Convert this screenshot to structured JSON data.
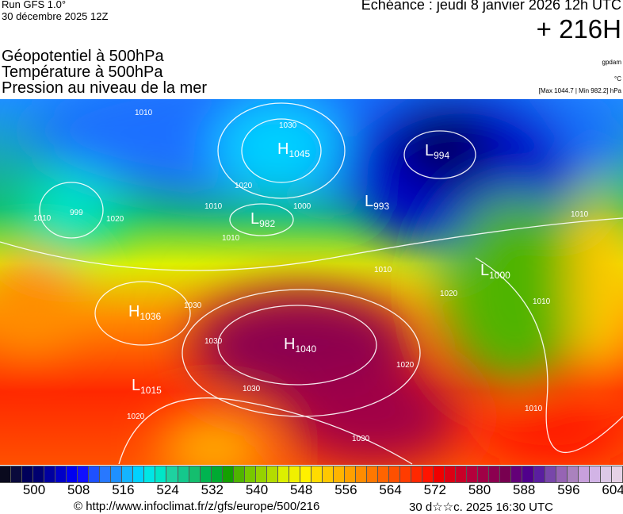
{
  "header": {
    "run": "Run GFS 1.0°",
    "run_date": "30 décembre 2025 12Z",
    "echeance": "Echéance : jeudi 8 janvier 2026 12h UTC",
    "offset": "+ 216H"
  },
  "titles": [
    "Géopotentiel à 500hPa",
    "Température à 500hPa",
    "Pression au niveau de la mer"
  ],
  "units": {
    "geopotential": "gpdam",
    "temperature": "°C",
    "pressure": "[Max 1044.7 | Min 982.2] hPa"
  },
  "centers": [
    {
      "type": "H",
      "value": "1045"
    },
    {
      "type": "L",
      "value": "994"
    },
    {
      "type": "L",
      "value": "982"
    },
    {
      "type": "L",
      "value": "993"
    },
    {
      "type": "L",
      "value": "1000"
    },
    {
      "type": "H",
      "value": "1036"
    },
    {
      "type": "H",
      "value": "1040"
    },
    {
      "type": "L",
      "value": "1015"
    }
  ],
  "isobar_labels": [
    "1010",
    "1030",
    "1020",
    "999",
    "1010",
    "1020",
    "1000",
    "1010",
    "1010",
    "1010",
    "1030",
    "1030",
    "1020",
    "1030",
    "1030",
    "1020",
    "1010",
    "1010",
    "1010",
    "1020"
  ],
  "colorbar": {
    "ticks": [
      "500",
      "508",
      "516",
      "524",
      "532",
      "540",
      "548",
      "556",
      "564",
      "572",
      "580",
      "588",
      "596",
      "604"
    ],
    "colors": [
      "#0a0a1e",
      "#0a0a3c",
      "#00005a",
      "#000070",
      "#0000a0",
      "#0000c8",
      "#0000f0",
      "#1010ff",
      "#1e50ff",
      "#2878ff",
      "#1e90ff",
      "#14b4ff",
      "#00d2ff",
      "#00e6e6",
      "#00e6c8",
      "#1ed2a0",
      "#14c88c",
      "#14be6e",
      "#00b450",
      "#00aa32",
      "#14a000",
      "#50b400",
      "#78c800",
      "#96d200",
      "#b4dc00",
      "#dcf000",
      "#f0f000",
      "#fff000",
      "#ffdc00",
      "#ffc800",
      "#ffb400",
      "#ffa000",
      "#ff8c00",
      "#ff7800",
      "#ff6400",
      "#ff5000",
      "#ff3c00",
      "#ff2800",
      "#ff1400",
      "#f00000",
      "#dc0014",
      "#c80028",
      "#b4003c",
      "#a00046",
      "#8c0050",
      "#780050",
      "#640078",
      "#50008c",
      "#5a1ea0",
      "#7846aa",
      "#9664b4",
      "#aa82be",
      "#c8a0dc",
      "#d2b4e6",
      "#dcc8e6",
      "#e6d2e6"
    ]
  },
  "footer": {
    "copyright": "© http://www.infoclimat.fr/z/gfs/europe/500/216",
    "generated": "30 d☆☆c. 2025 16:30 UTC"
  }
}
